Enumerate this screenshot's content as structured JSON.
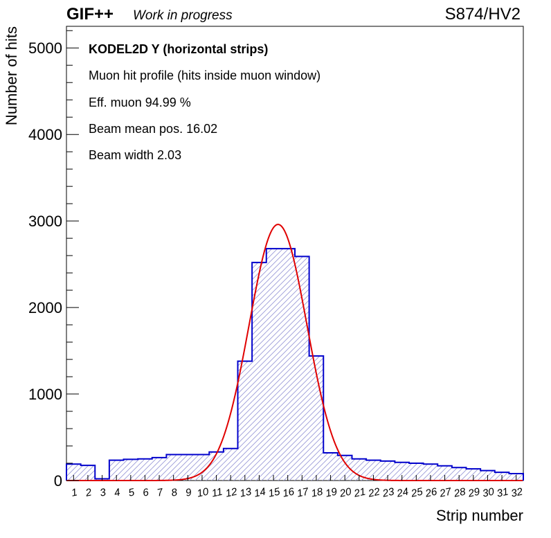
{
  "header": {
    "brand": "GIF++",
    "status": "Work in progress",
    "run_label": "S874/HV2"
  },
  "stats": {
    "title": "KODEL2D Y (horizontal strips)",
    "line1": "Muon hit profile (hits inside muon window)",
    "line2": "Eff. muon 94.99 %",
    "line3": "Beam mean pos. 16.02",
    "line4": "Beam width 2.03"
  },
  "colors": {
    "histogram": "#0000cc",
    "fit": "#e00000",
    "hatch": "#9a9ad8",
    "axis": "#000000"
  },
  "chart_data": {
    "type": "bar",
    "xlabel": "Strip number",
    "ylabel": "Number of hits",
    "ylim": [
      0,
      5250
    ],
    "yticks": [
      0,
      1000,
      2000,
      3000,
      4000,
      5000
    ],
    "categories": [
      "1",
      "2",
      "3",
      "4",
      "5",
      "6",
      "7",
      "8",
      "9",
      "10",
      "11",
      "12",
      "13",
      "14",
      "15",
      "16",
      "17",
      "18",
      "19",
      "20",
      "21",
      "22",
      "23",
      "24",
      "25",
      "26",
      "27",
      "28",
      "29",
      "30",
      "31",
      "32"
    ],
    "values": [
      190,
      175,
      20,
      235,
      245,
      250,
      265,
      300,
      300,
      300,
      330,
      370,
      1380,
      2520,
      2680,
      2680,
      2590,
      1440,
      320,
      290,
      250,
      235,
      225,
      210,
      200,
      190,
      170,
      150,
      135,
      115,
      95,
      80
    ],
    "histogram_style": "step, hatched fill",
    "grid": false,
    "fit": {
      "type": "gaussian",
      "amplitude": 2960,
      "mean": 16.02,
      "sigma": 2.03
    }
  }
}
